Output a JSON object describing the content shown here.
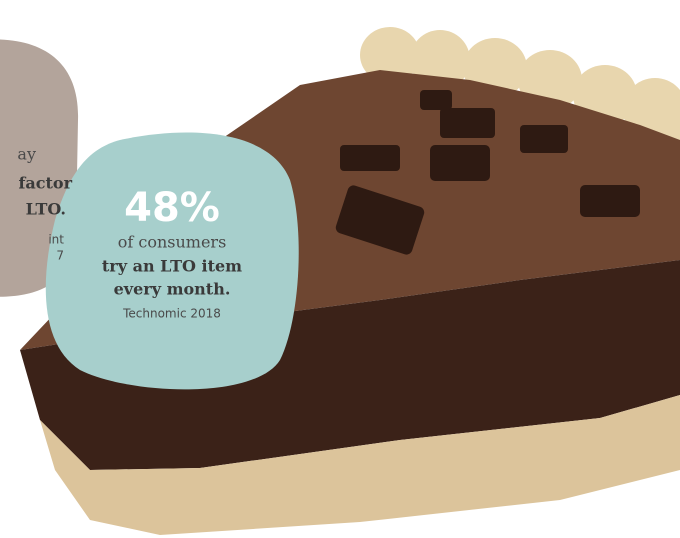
{
  "left_callout": {
    "lines": [
      "ay",
      "factor",
      "LTO.",
      "int",
      "7"
    ]
  },
  "right_callout": {
    "stat": "48%",
    "lines": [
      "of consumers",
      "try an LTO item",
      "every month."
    ],
    "source": "Technomic 2018"
  }
}
